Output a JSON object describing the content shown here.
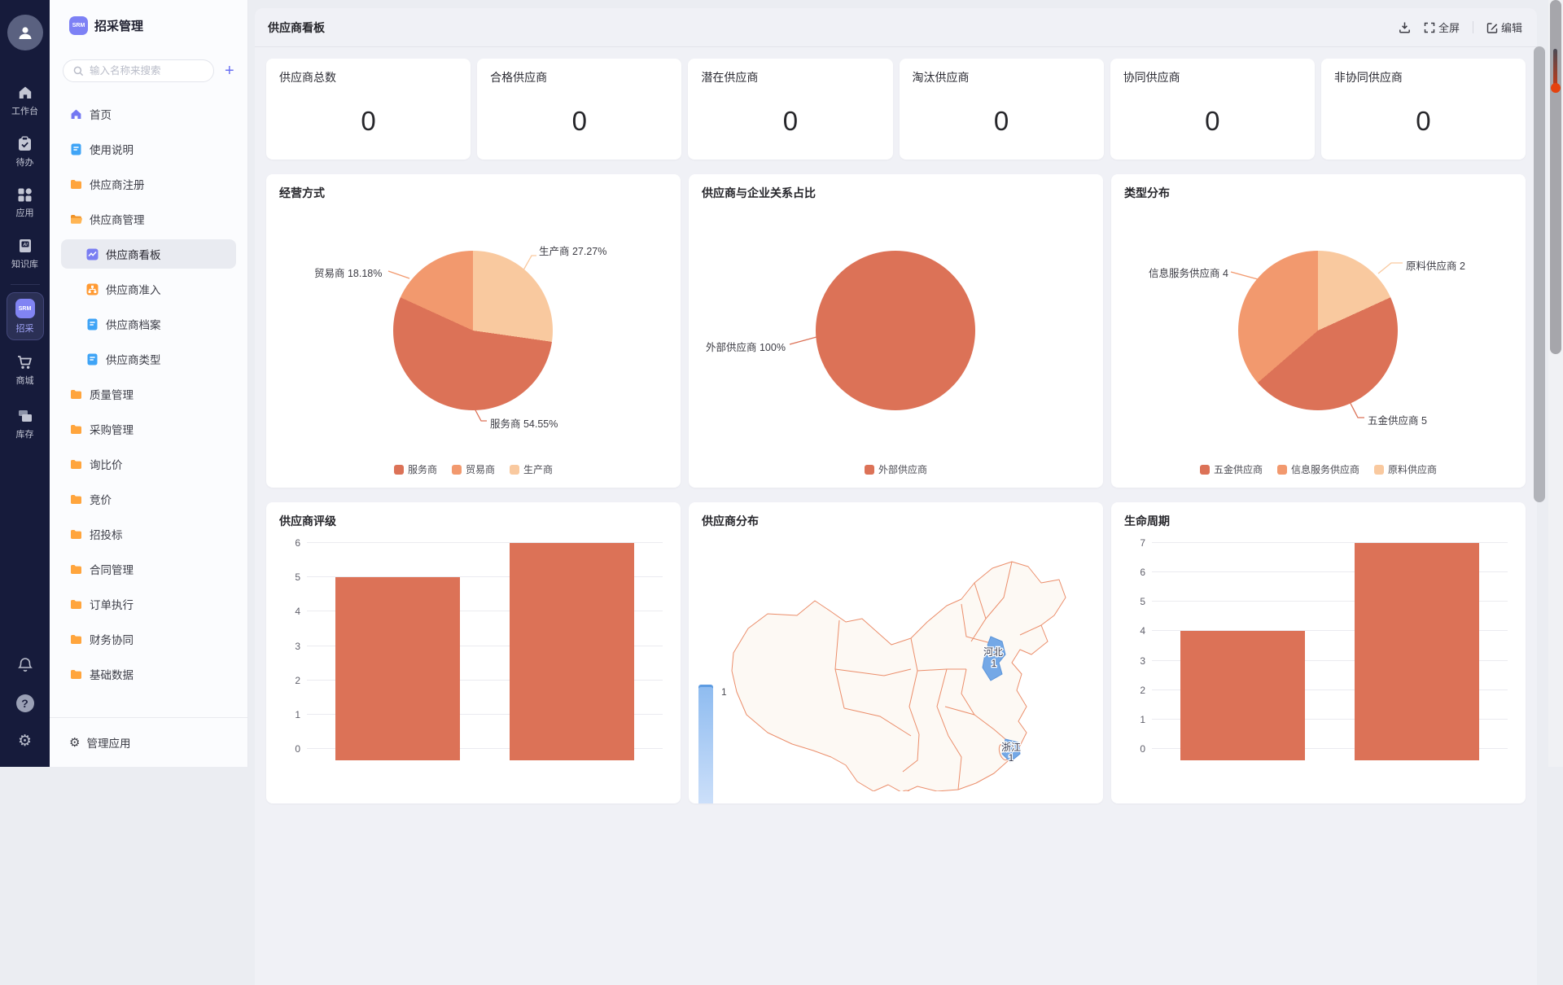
{
  "rail": {
    "items": [
      {
        "label": "工作台",
        "icon": "workbench"
      },
      {
        "label": "待办",
        "icon": "todo"
      },
      {
        "label": "应用",
        "icon": "apps"
      },
      {
        "label": "知识库",
        "icon": "knowledge"
      },
      {
        "label": "招采",
        "icon": "srm",
        "badge": "SRM",
        "active": true
      },
      {
        "label": "商城",
        "icon": "mall"
      },
      {
        "label": "库存",
        "icon": "inventory"
      }
    ]
  },
  "sidebar": {
    "app": {
      "title": "招采管理",
      "logo_text": "SRM"
    },
    "search": {
      "placeholder": "输入名称来搜索",
      "add_label": "+"
    },
    "menu": [
      {
        "label": "首页"
      },
      {
        "label": "使用说明"
      },
      {
        "label": "供应商注册"
      },
      {
        "label": "供应商管理"
      },
      {
        "label": "供应商看板",
        "selected": true
      },
      {
        "label": "供应商准入"
      },
      {
        "label": "供应商档案"
      },
      {
        "label": "供应商类型"
      },
      {
        "label": "质量管理"
      },
      {
        "label": "采购管理"
      },
      {
        "label": "询比价"
      },
      {
        "label": "竞价"
      },
      {
        "label": "招投标"
      },
      {
        "label": "合同管理"
      },
      {
        "label": "订单执行"
      },
      {
        "label": "财务协同"
      },
      {
        "label": "基础数据"
      }
    ],
    "footer": {
      "label": "管理应用"
    }
  },
  "header": {
    "title": "供应商看板",
    "fullscreen_label": "全屏",
    "edit_label": "编辑"
  },
  "stats": [
    {
      "label": "供应商总数",
      "value": "0"
    },
    {
      "label": "合格供应商",
      "value": "0"
    },
    {
      "label": "潜在供应商",
      "value": "0"
    },
    {
      "label": "淘汰供应商",
      "value": "0"
    },
    {
      "label": "协同供应商",
      "value": "0"
    },
    {
      "label": "非协同供应商",
      "value": "0"
    }
  ],
  "palette": {
    "dark_orange": "#dc7257",
    "mid_orange": "#f2996e",
    "light_orange": "#f9c99f",
    "province_blue": "#74a8e6"
  },
  "chart_data": [
    {
      "type": "pie",
      "title": "经营方式",
      "slices": [
        {
          "name": "生产商",
          "pct": 27.27,
          "color": "#f9c99f",
          "callout": "生产商 27.27%"
        },
        {
          "name": "服务商",
          "pct": 54.55,
          "color": "#dc7257",
          "callout": "服务商 54.55%"
        },
        {
          "name": "贸易商",
          "pct": 18.18,
          "color": "#f2996e",
          "callout": "贸易商 18.18%"
        }
      ],
      "legend": [
        {
          "name": "服务商",
          "color": "#dc7257"
        },
        {
          "name": "贸易商",
          "color": "#f2996e"
        },
        {
          "name": "生产商",
          "color": "#f9c99f"
        }
      ],
      "legend_position": "bottom"
    },
    {
      "type": "pie",
      "title": "供应商与企业关系占比",
      "slices": [
        {
          "name": "外部供应商",
          "pct": 100,
          "color": "#dc7257",
          "callout": "外部供应商 100%"
        }
      ],
      "legend": [
        {
          "name": "外部供应商",
          "color": "#dc7257"
        }
      ],
      "legend_position": "bottom"
    },
    {
      "type": "pie",
      "title": "类型分布",
      "slices": [
        {
          "name": "原料供应商",
          "value": 2,
          "pct": 18.18,
          "color": "#f9c99f",
          "callout": "原料供应商 2"
        },
        {
          "name": "五金供应商",
          "value": 5,
          "pct": 45.45,
          "color": "#dc7257",
          "callout": "五金供应商 5"
        },
        {
          "name": "信息服务供应商",
          "value": 4,
          "pct": 36.36,
          "color": "#f2996e",
          "callout": "信息服务供应商 4"
        }
      ],
      "legend": [
        {
          "name": "五金供应商",
          "color": "#dc7257"
        },
        {
          "name": "信息服务供应商",
          "color": "#f2996e"
        },
        {
          "name": "原料供应商",
          "color": "#f9c99f"
        }
      ],
      "legend_position": "bottom"
    },
    {
      "type": "bar",
      "title": "供应商评级",
      "values": [
        5,
        6
      ],
      "ylim": [
        0,
        6
      ],
      "ytick_step": 1,
      "grid": true,
      "color": "#dc7257"
    },
    {
      "type": "map",
      "title": "供应商分布",
      "regions": [
        {
          "name": "河北",
          "value": "1"
        },
        {
          "name": "浙江",
          "value": "1"
        }
      ],
      "legend_value": "1",
      "region_color": "#74a8e6"
    },
    {
      "type": "bar",
      "title": "生命周期",
      "values": [
        4,
        7
      ],
      "ylim": [
        0,
        7
      ],
      "ytick_step": 1,
      "grid": true,
      "color": "#dc7257"
    }
  ]
}
